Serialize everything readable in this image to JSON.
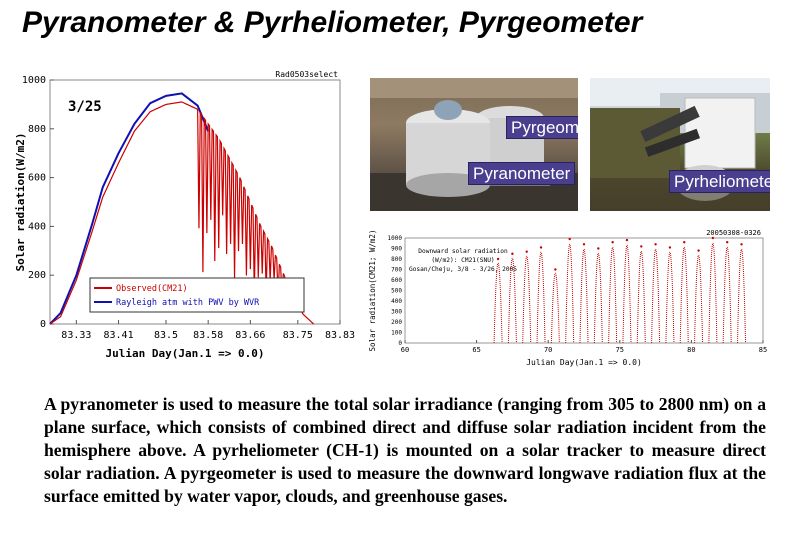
{
  "slide": {
    "title": "Pyranometer & Pyrheliometer, Pyrgeometer",
    "description": "A pyranometer is used to measure the total solar irradiance (ranging from 305 to 2800 nm) on a plane surface, which consists of combined direct and diffuse solar radiation incident from the hemisphere above. A pyrheliometer (CH-1) is mounted on a solar tracker to measure direct solar radiation. A pyrgeometer is used to measure the downward longwave radiation flux at the surface emitted by water vapor, clouds, and greenhouse gases."
  },
  "photos": {
    "labels": {
      "pyrgeometer": "Pyrgeometer",
      "pyranometer": "Pyranometer",
      "pyrheliometer": "Pyrheliometer"
    },
    "label_bg": "#4a3f8f"
  },
  "chart_data": [
    {
      "type": "line",
      "corner_label": "Rad0503select",
      "date_label": "3/25",
      "xlabel": "Julian Day(Jan.1 => 0.0)",
      "ylabel": "Solar radiation(W/m2)",
      "xlim": [
        83.28,
        83.83
      ],
      "ylim": [
        0,
        1000
      ],
      "x_ticks": [
        "83.33",
        "83.41",
        "83.5",
        "83.58",
        "83.66",
        "83.75",
        "83.83"
      ],
      "y_ticks": [
        "0",
        "200",
        "400",
        "600",
        "800",
        "1000"
      ],
      "legend_position": "bottom-left",
      "series": [
        {
          "name": "Observed(CM21)",
          "color": "#cc0000",
          "x": [
            83.28,
            83.3,
            83.33,
            83.36,
            83.38,
            83.41,
            83.44,
            83.47,
            83.5,
            83.53,
            83.56,
            83.58,
            83.6,
            83.62,
            83.64,
            83.66,
            83.68,
            83.7,
            83.72,
            83.74,
            83.76,
            83.78
          ],
          "y": [
            0,
            30,
            180,
            380,
            520,
            660,
            790,
            870,
            900,
            910,
            880,
            820,
            760,
            680,
            600,
            500,
            400,
            320,
            220,
            120,
            40,
            0
          ]
        },
        {
          "name": "Rayleigh atm with PWV by WVR",
          "color": "#1010b0",
          "x": [
            83.28,
            83.3,
            83.33,
            83.36,
            83.38,
            83.41,
            83.44,
            83.47,
            83.5,
            83.53,
            83.56,
            83.58
          ],
          "y": [
            0,
            45,
            200,
            410,
            560,
            700,
            820,
            905,
            935,
            945,
            895,
            790
          ]
        }
      ]
    },
    {
      "type": "scatter",
      "corner_label": "20050308-0326",
      "annotation": [
        "Downward solar radiation",
        "(W/m2): CM21(SNU)",
        "Gosan/Cheju, 3/8 - 3/26, 2005"
      ],
      "xlabel": "Julian Day(Jan.1 => 0.0)",
      "ylabel": "Solar radiation(CM21; W/m2)",
      "xlim": [
        60,
        85
      ],
      "ylim": [
        0,
        1000
      ],
      "x_ticks": [
        "60",
        "65",
        "70",
        "75",
        "80",
        "85"
      ],
      "y_ticks": [
        "0",
        "100",
        "200",
        "300",
        "400",
        "500",
        "600",
        "700",
        "800",
        "900",
        "1000"
      ],
      "series": [
        {
          "name": "",
          "color": "#cc0000",
          "daily_peaks": [
            {
              "day": 66.5,
              "peak": 800
            },
            {
              "day": 67.5,
              "peak": 850
            },
            {
              "day": 68.5,
              "peak": 870
            },
            {
              "day": 69.5,
              "peak": 910
            },
            {
              "day": 70.5,
              "peak": 700
            },
            {
              "day": 71.5,
              "peak": 990
            },
            {
              "day": 72.5,
              "peak": 940
            },
            {
              "day": 73.5,
              "peak": 900
            },
            {
              "day": 74.5,
              "peak": 960
            },
            {
              "day": 75.5,
              "peak": 980
            },
            {
              "day": 76.5,
              "peak": 920
            },
            {
              "day": 77.5,
              "peak": 940
            },
            {
              "day": 78.5,
              "peak": 910
            },
            {
              "day": 79.5,
              "peak": 960
            },
            {
              "day": 80.5,
              "peak": 880
            },
            {
              "day": 81.5,
              "peak": 1000
            },
            {
              "day": 82.5,
              "peak": 960
            },
            {
              "day": 83.5,
              "peak": 940
            }
          ]
        }
      ]
    }
  ]
}
